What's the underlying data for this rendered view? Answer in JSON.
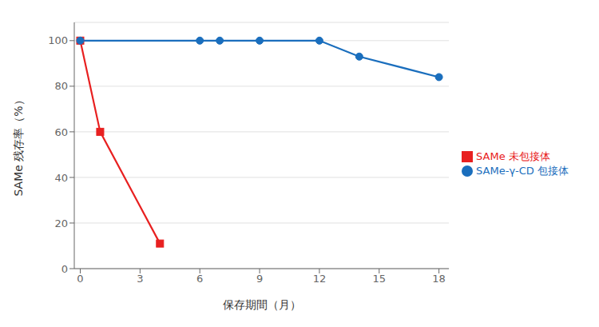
{
  "chart_data": {
    "type": "line",
    "xlabel": "保存期間（月）",
    "ylabel": "SAMe 残存率（%）",
    "series": [
      {
        "name": "SAMe 未包接体",
        "color": "#e82020",
        "marker": "square",
        "x": [
          0,
          1,
          4
        ],
        "values": [
          100,
          60,
          11
        ]
      },
      {
        "name": "SAMe-γ-CD 包接体",
        "color": "#1a6ebd",
        "marker": "circle",
        "x": [
          0,
          6,
          7,
          9,
          12,
          14,
          18
        ],
        "values": [
          100,
          100,
          100,
          100,
          100,
          93,
          84
        ]
      }
    ],
    "xlim": [
      -0.3,
      18.5
    ],
    "ylim": [
      0,
      108
    ],
    "xticks": [
      0,
      3,
      6,
      9,
      12,
      15,
      18
    ],
    "yticks": [
      0,
      20,
      40,
      60,
      80,
      100
    ],
    "grid": "y",
    "legend": "right"
  }
}
